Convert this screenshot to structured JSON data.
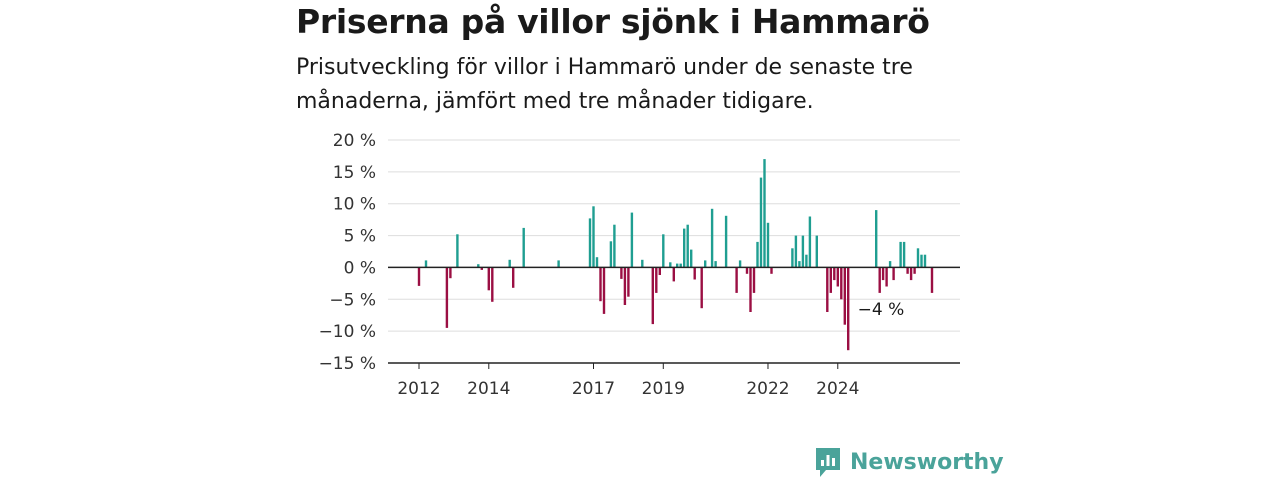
{
  "title": "Priserna på villor sjönk i Hammarö",
  "subtitle": "Prisutveckling för villor i Hammarö under de senaste tre månaderna, jämfört med tre månader tidigare.",
  "brand": {
    "name": "Newsworthy",
    "icon": "newsworthy-logo-icon"
  },
  "colors": {
    "positive": "#1f9e91",
    "negative": "#9b0f43",
    "grid": "#dddddd",
    "axis": "#222222",
    "brand": "#4aa39a"
  },
  "chart_data": {
    "type": "bar",
    "title": "",
    "xlabel": "",
    "ylabel": "",
    "ylim": [
      -15,
      20
    ],
    "yticks": [
      20,
      15,
      10,
      5,
      0,
      -5,
      -10,
      -15
    ],
    "ytick_labels": [
      "20 %",
      "15 %",
      "10 %",
      "5 %",
      "0 %",
      "−5 %",
      "−10 %",
      "−15 %"
    ],
    "xticks": [
      2012,
      2014,
      2017,
      2019,
      2022,
      2024
    ],
    "grid": true,
    "annotation": {
      "text": "−4 %",
      "x": 2025.2
    },
    "series": [
      {
        "x": 2012.0,
        "y": -2.9
      },
      {
        "x": 2012.2,
        "y": 1.1
      },
      {
        "x": 2012.8,
        "y": -9.5
      },
      {
        "x": 2012.9,
        "y": -1.7
      },
      {
        "x": 2013.1,
        "y": 5.2
      },
      {
        "x": 2013.7,
        "y": 0.5
      },
      {
        "x": 2013.8,
        "y": -0.4
      },
      {
        "x": 2014.0,
        "y": -3.6
      },
      {
        "x": 2014.1,
        "y": -5.4
      },
      {
        "x": 2014.6,
        "y": 1.2
      },
      {
        "x": 2014.7,
        "y": -3.2
      },
      {
        "x": 2015.0,
        "y": 6.2
      },
      {
        "x": 2016.0,
        "y": 1.1
      },
      {
        "x": 2016.9,
        "y": 7.7
      },
      {
        "x": 2017.0,
        "y": 9.6
      },
      {
        "x": 2017.1,
        "y": 1.6
      },
      {
        "x": 2017.2,
        "y": -5.3
      },
      {
        "x": 2017.3,
        "y": -7.3
      },
      {
        "x": 2017.5,
        "y": 4.1
      },
      {
        "x": 2017.6,
        "y": 6.7
      },
      {
        "x": 2017.8,
        "y": -1.8
      },
      {
        "x": 2017.9,
        "y": -5.9
      },
      {
        "x": 2018.0,
        "y": -4.6
      },
      {
        "x": 2018.1,
        "y": 8.6
      },
      {
        "x": 2018.4,
        "y": 1.2
      },
      {
        "x": 2018.7,
        "y": -8.9
      },
      {
        "x": 2018.8,
        "y": -4.0
      },
      {
        "x": 2018.9,
        "y": -1.2
      },
      {
        "x": 2019.0,
        "y": 5.2
      },
      {
        "x": 2019.2,
        "y": 0.8
      },
      {
        "x": 2019.3,
        "y": -2.2
      },
      {
        "x": 2019.4,
        "y": 0.6
      },
      {
        "x": 2019.5,
        "y": 0.6
      },
      {
        "x": 2019.6,
        "y": 6.1
      },
      {
        "x": 2019.7,
        "y": 6.7
      },
      {
        "x": 2019.8,
        "y": 2.8
      },
      {
        "x": 2019.9,
        "y": -1.9
      },
      {
        "x": 2020.1,
        "y": -6.4
      },
      {
        "x": 2020.2,
        "y": 1.1
      },
      {
        "x": 2020.4,
        "y": 9.2
      },
      {
        "x": 2020.5,
        "y": 1.0
      },
      {
        "x": 2020.8,
        "y": 8.1
      },
      {
        "x": 2021.1,
        "y": -4.0
      },
      {
        "x": 2021.2,
        "y": 1.1
      },
      {
        "x": 2021.4,
        "y": -1.0
      },
      {
        "x": 2021.5,
        "y": -7.0
      },
      {
        "x": 2021.6,
        "y": -4.0
      },
      {
        "x": 2021.7,
        "y": 4.0
      },
      {
        "x": 2021.8,
        "y": 14.1
      },
      {
        "x": 2021.9,
        "y": 17.0
      },
      {
        "x": 2022.0,
        "y": 7.0
      },
      {
        "x": 2022.1,
        "y": -1.0
      },
      {
        "x": 2022.7,
        "y": 3.0
      },
      {
        "x": 2022.8,
        "y": 5.0
      },
      {
        "x": 2022.9,
        "y": 1.0
      },
      {
        "x": 2023.0,
        "y": 5.0
      },
      {
        "x": 2023.1,
        "y": 2.0
      },
      {
        "x": 2023.2,
        "y": 8.0
      },
      {
        "x": 2023.4,
        "y": 5.0
      },
      {
        "x": 2023.7,
        "y": -7.0
      },
      {
        "x": 2023.8,
        "y": -4.0
      },
      {
        "x": 2023.9,
        "y": -2.0
      },
      {
        "x": 2024.0,
        "y": -3.0
      },
      {
        "x": 2024.1,
        "y": -5.0
      },
      {
        "x": 2024.2,
        "y": -9.0
      },
      {
        "x": 2024.3,
        "y": -13.0
      },
      {
        "x": 2025.1,
        "y": 9.0
      },
      {
        "x": 2025.2,
        "y": -4.0
      },
      {
        "x": 2025.3,
        "y": -2.0
      },
      {
        "x": 2025.4,
        "y": -3.0
      },
      {
        "x": 2025.5,
        "y": 1.0
      },
      {
        "x": 2025.6,
        "y": -2.0
      },
      {
        "x": 2025.8,
        "y": 4.0
      },
      {
        "x": 2025.9,
        "y": 4.0
      },
      {
        "x": 2026.0,
        "y": -1.0
      },
      {
        "x": 2026.1,
        "y": -2.0
      },
      {
        "x": 2026.2,
        "y": -1.0
      },
      {
        "x": 2026.3,
        "y": 3.0
      },
      {
        "x": 2026.4,
        "y": 2.0
      },
      {
        "x": 2026.5,
        "y": 2.0
      },
      {
        "x": 2026.7,
        "y": -4.0
      }
    ]
  }
}
